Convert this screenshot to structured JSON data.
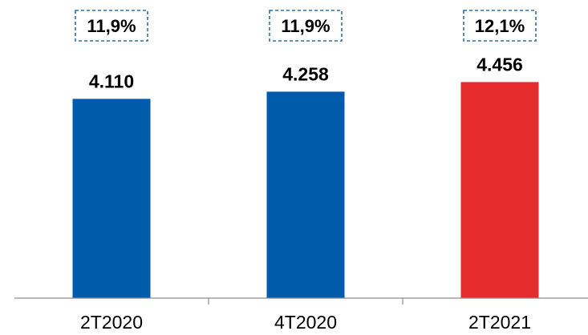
{
  "chart_data": {
    "type": "bar",
    "title": "",
    "xlabel": "",
    "ylabel": "",
    "ylim": [
      0,
      4800
    ],
    "grid": false,
    "categories": [
      "2T2020",
      "4T2020",
      "2T2021"
    ],
    "values": [
      4110,
      4258,
      4456
    ],
    "value_labels": [
      "4.110",
      "4.258",
      "4.456"
    ],
    "box_labels": [
      "11,9%",
      "11,9%",
      "12,1%"
    ],
    "bar_colors": [
      "#005bab",
      "#005bab",
      "#e52b2b"
    ],
    "box_border_color": "#2e6da4",
    "axis_color": "#8c8c8c"
  }
}
